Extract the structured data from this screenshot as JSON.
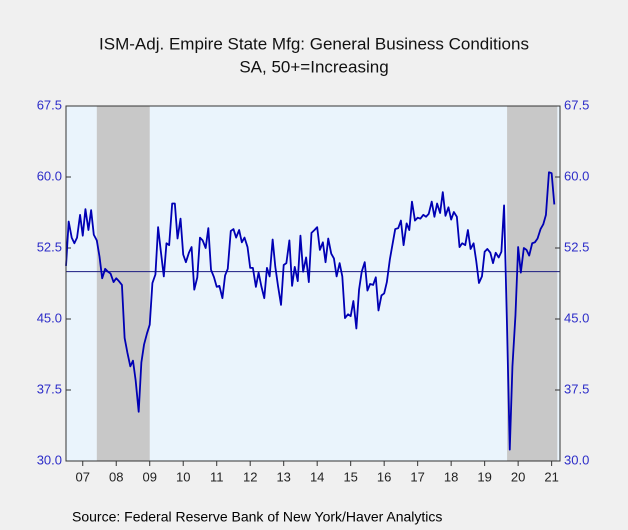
{
  "chart_data": {
    "type": "line",
    "title": "ISM-Adj. Empire State Mfg: General Business Conditions",
    "subtitle": "SA, 50+=Increasing",
    "source": "Source:  Federal Reserve Bank of New York/Haver Analytics",
    "x": [
      2007.0,
      2007.08,
      2007.17,
      2007.25,
      2007.33,
      2007.42,
      2007.5,
      2007.58,
      2007.67,
      2007.75,
      2007.83,
      2007.92,
      2008.0,
      2008.08,
      2008.17,
      2008.25,
      2008.33,
      2008.42,
      2008.5,
      2008.58,
      2008.67,
      2008.75,
      2008.83,
      2008.92,
      2009.0,
      2009.08,
      2009.17,
      2009.25,
      2009.33,
      2009.42,
      2009.5,
      2009.58,
      2009.67,
      2009.75,
      2009.83,
      2009.92,
      2010.0,
      2010.08,
      2010.17,
      2010.25,
      2010.33,
      2010.42,
      2010.5,
      2010.58,
      2010.67,
      2010.75,
      2010.83,
      2010.92,
      2011.0,
      2011.08,
      2011.17,
      2011.25,
      2011.33,
      2011.42,
      2011.5,
      2011.58,
      2011.67,
      2011.75,
      2011.83,
      2011.92,
      2012.0,
      2012.08,
      2012.17,
      2012.25,
      2012.33,
      2012.42,
      2012.5,
      2012.58,
      2012.67,
      2012.75,
      2012.83,
      2012.92,
      2013.0,
      2013.08,
      2013.17,
      2013.25,
      2013.33,
      2013.42,
      2013.5,
      2013.58,
      2013.67,
      2013.75,
      2013.83,
      2013.92,
      2014.0,
      2014.08,
      2014.17,
      2014.25,
      2014.33,
      2014.42,
      2014.5,
      2014.58,
      2014.67,
      2014.75,
      2014.83,
      2014.92,
      2015.0,
      2015.08,
      2015.17,
      2015.25,
      2015.33,
      2015.42,
      2015.5,
      2015.58,
      2015.67,
      2015.75,
      2015.83,
      2015.92,
      2016.0,
      2016.08,
      2016.17,
      2016.25,
      2016.33,
      2016.42,
      2016.5,
      2016.58,
      2016.67,
      2016.75,
      2016.83,
      2016.92,
      2017.0,
      2017.08,
      2017.17,
      2017.25,
      2017.33,
      2017.42,
      2017.5,
      2017.58,
      2017.67,
      2017.75,
      2017.83,
      2017.92,
      2018.0,
      2018.08,
      2018.17,
      2018.25,
      2018.33,
      2018.42,
      2018.5,
      2018.58,
      2018.67,
      2018.75,
      2018.83,
      2018.92,
      2019.0,
      2019.08,
      2019.17,
      2019.25,
      2019.33,
      2019.42,
      2019.5,
      2019.58,
      2019.67,
      2019.75,
      2019.83,
      2019.92,
      2020.0,
      2020.08,
      2020.17,
      2020.25,
      2020.33,
      2020.42,
      2020.5,
      2020.58,
      2020.67,
      2020.75,
      2020.83,
      2020.92,
      2021.0,
      2021.08,
      2021.17,
      2021.25,
      2021.33,
      2021.42,
      2021.5,
      2021.58
    ],
    "series": [
      {
        "color": "#0000b4",
        "values": [
          50.6,
          55.3,
          53.6,
          53.0,
          53.6,
          56.0,
          53.8,
          56.6,
          54.4,
          56.5,
          53.9,
          53.3,
          51.6,
          49.3,
          50.3,
          50.0,
          49.8,
          48.9,
          49.3,
          49.0,
          48.6,
          43.0,
          41.5,
          40.0,
          40.6,
          38.5,
          35.2,
          40.4,
          42.3,
          43.5,
          44.4,
          48.8,
          49.7,
          54.7,
          52.2,
          49.5,
          53.0,
          52.8,
          57.2,
          57.2,
          53.5,
          55.6,
          51.8,
          51.0,
          52.0,
          52.6,
          48.1,
          49.4,
          53.6,
          53.3,
          52.5,
          54.6,
          50.2,
          49.4,
          48.4,
          48.5,
          47.2,
          49.6,
          50.3,
          54.3,
          54.5,
          53.6,
          54.4,
          53.1,
          53.6,
          52.6,
          50.4,
          50.4,
          48.4,
          49.9,
          48.5,
          47.2,
          50.4,
          49.5,
          53.4,
          50.5,
          48.5,
          46.5,
          50.7,
          50.9,
          53.3,
          48.5,
          50.5,
          49.0,
          53.8,
          50.0,
          51.5,
          48.9,
          54.1,
          54.4,
          54.7,
          52.3,
          53.1,
          51.0,
          53.5,
          51.9,
          51.4,
          49.5,
          50.9,
          49.5,
          45.1,
          45.5,
          45.3,
          46.9,
          44.0,
          48.1,
          50.0,
          51.0,
          48.0,
          48.7,
          48.6,
          49.4,
          45.9,
          47.5,
          47.7,
          48.9,
          51.3,
          52.9,
          54.5,
          54.6,
          55.4,
          52.8,
          55.1,
          54.4,
          57.4,
          55.4,
          55.7,
          55.6,
          56.0,
          55.8,
          56.1,
          57.4,
          55.8,
          57.2,
          56.2,
          58.4,
          55.9,
          56.8,
          55.5,
          56.3,
          55.8,
          52.6,
          53.0,
          52.8,
          54.4,
          52.4,
          53.0,
          51.1,
          48.8,
          49.5,
          52.1,
          52.4,
          52.0,
          50.9,
          52.0,
          51.5,
          52.1,
          57.0,
          44.0,
          31.2,
          40.0,
          45.4,
          52.6,
          49.9,
          52.5,
          52.3,
          51.7,
          53.0,
          53.1,
          53.5,
          54.5,
          55.0,
          56.0,
          60.5,
          60.4,
          57.1
        ]
      }
    ],
    "shaded": [
      [
        2007.92,
        2009.5
      ],
      [
        2020.17,
        2021.67
      ]
    ],
    "reference_line": 50,
    "xlim": [
      2007,
      2021.75
    ],
    "xticks": [
      {
        "value": 2007.5,
        "label": "07"
      },
      {
        "value": 2008.5,
        "label": "08"
      },
      {
        "value": 2009.5,
        "label": "09"
      },
      {
        "value": 2010.5,
        "label": "10"
      },
      {
        "value": 2011.5,
        "label": "11"
      },
      {
        "value": 2012.5,
        "label": "12"
      },
      {
        "value": 2013.5,
        "label": "13"
      },
      {
        "value": 2014.5,
        "label": "14"
      },
      {
        "value": 2015.5,
        "label": "15"
      },
      {
        "value": 2016.5,
        "label": "16"
      },
      {
        "value": 2017.5,
        "label": "17"
      },
      {
        "value": 2018.5,
        "label": "18"
      },
      {
        "value": 2019.5,
        "label": "19"
      },
      {
        "value": 2020.5,
        "label": "20"
      },
      {
        "value": 2021.5,
        "label": "21"
      }
    ],
    "ylim": [
      30,
      67.5
    ],
    "yticks": [
      {
        "value": 30,
        "label": "30.0"
      },
      37.5,
      {
        "value": 45,
        "label": "45.0"
      },
      52.5,
      {
        "value": 60,
        "label": "60.0"
      },
      67.5
    ]
  }
}
